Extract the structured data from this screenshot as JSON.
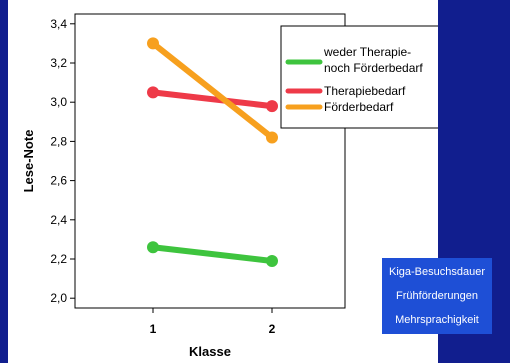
{
  "chart_data": {
    "type": "line",
    "xlabel": "Klasse",
    "ylabel": "Lese-Note",
    "x": [
      "1",
      "2"
    ],
    "ylim": [
      1.95,
      3.45
    ],
    "yticks": [
      "2,0",
      "2,2",
      "2,4",
      "2,6",
      "2,8",
      "3,0",
      "3,2",
      "3,4"
    ],
    "ytick_values": [
      2.0,
      2.2,
      2.4,
      2.6,
      2.8,
      3.0,
      3.2,
      3.4
    ],
    "grid": false,
    "legend_position": "top-right",
    "series": [
      {
        "name": "weder Therapie-noch Förderbedarf",
        "legend_lines": [
          "weder Therapie-",
          "noch Förderbedarf"
        ],
        "color": "#3ec43e",
        "values": [
          2.26,
          2.19
        ]
      },
      {
        "name": "Therapiebedarf",
        "legend_lines": [
          "Therapiebedarf"
        ],
        "color": "#ee3a48",
        "values": [
          3.05,
          2.98
        ]
      },
      {
        "name": "Förderbedarf",
        "legend_lines": [
          "Förderbedarf"
        ],
        "color": "#f7a01e",
        "values": [
          3.3,
          2.82
        ]
      }
    ]
  },
  "side_box": {
    "items": [
      "Kiga-Besuchsdauer",
      "Frühförderungen",
      "Mehrsprachigkeit"
    ]
  },
  "colors": {
    "background": "#111e8e",
    "side_box": "#1e4fd6"
  }
}
